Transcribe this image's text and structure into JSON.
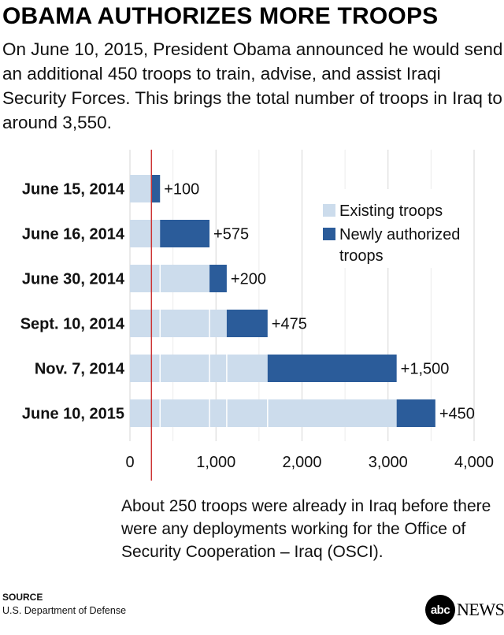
{
  "title": "OBAMA AUTHORIZES MORE TROOPS",
  "subtitle": "On June 10, 2015, President Obama announced he would send an additional 450 troops to train, advise, and assist Iraqi Security Forces. This brings the total number of troops in Iraq to around 3,550.",
  "note": "About 250 troops were already in Iraq before there were any deployments working for the Office of Security Cooperation – Iraq (OSCI).",
  "source": {
    "label": "SOURCE",
    "text": "U.S. Department of Defense"
  },
  "logo": {
    "circle_text": "abc",
    "word": "NEWS"
  },
  "colors": {
    "existing": "#ccdcec",
    "new": "#2b5c9a",
    "reference_line": "#cc3333",
    "grid": "#d6d6d6"
  },
  "chart_data": {
    "type": "bar",
    "orientation": "horizontal",
    "stacked": true,
    "categories": [
      "June 15, 2014",
      "June 16, 2014",
      "June 30, 2014",
      "Sept. 10, 2014",
      "Nov. 7, 2014",
      "June 10, 2015"
    ],
    "series": [
      {
        "name": "Existing troops",
        "values": [
          250,
          350,
          925,
          1125,
          1600,
          3100
        ]
      },
      {
        "name": "Newly authorized troops",
        "values": [
          100,
          575,
          200,
          475,
          1500,
          450
        ]
      }
    ],
    "data_labels": [
      "+100",
      "+575",
      "+200",
      "+475",
      "+1,500",
      "+450"
    ],
    "segment_dividers": [
      250,
      350,
      925,
      1125,
      1600
    ],
    "reference_line": 250,
    "xlim": [
      0,
      4000
    ],
    "xticks": [
      0,
      1000,
      2000,
      3000,
      4000
    ],
    "xtick_labels": [
      "0",
      "1,000",
      "2,000",
      "3,000",
      "4,000"
    ],
    "grid": true,
    "legend_position": "top-right",
    "legend": [
      "Existing troops",
      "Newly authorized",
      "troops"
    ]
  }
}
